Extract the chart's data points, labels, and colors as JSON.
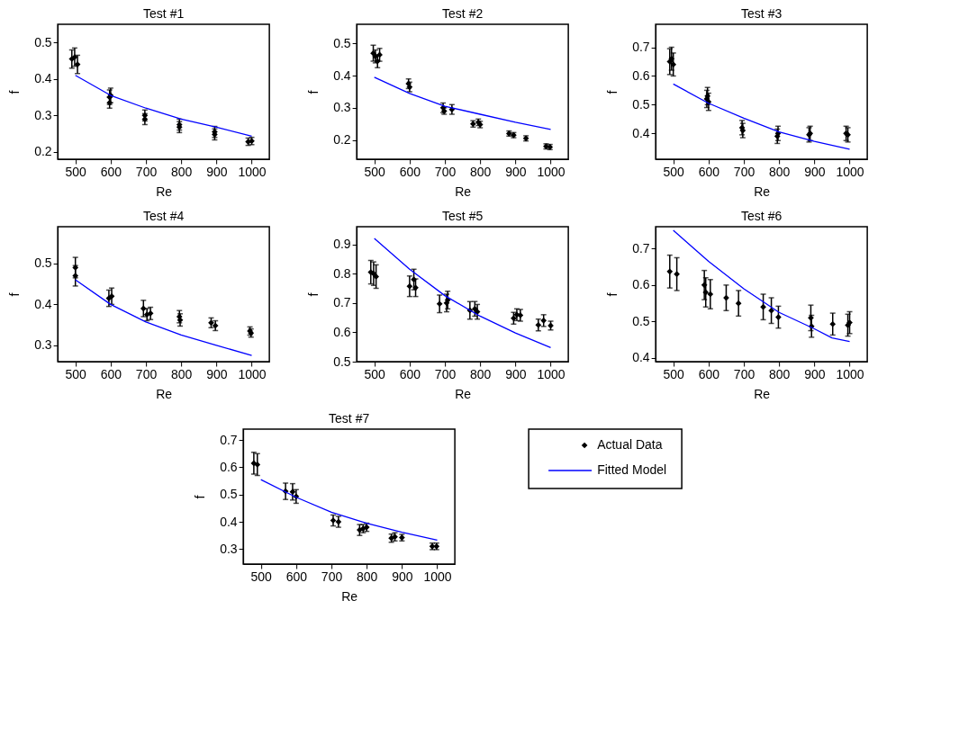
{
  "chart_data": [
    {
      "type": "scatter",
      "title": "Test #1",
      "xlabel": "Re",
      "ylabel": "f",
      "xlim": [
        450,
        1050
      ],
      "xticks": [
        500,
        600,
        700,
        800,
        900,
        1000
      ],
      "ylim": [
        0.18,
        0.55
      ],
      "yticks": [
        0.2,
        0.3,
        0.4,
        0.5
      ],
      "grid": false,
      "series": [
        {
          "type": "scatter",
          "marker": "diamond",
          "color": "#000000",
          "x": [
            490,
            498,
            506,
            597,
            600,
            597,
            697,
            697,
            795,
            795,
            895,
            895,
            1000,
            990
          ],
          "values": [
            0.455,
            0.46,
            0.44,
            0.35,
            0.355,
            0.335,
            0.3,
            0.29,
            0.275,
            0.268,
            0.255,
            0.248,
            0.23,
            0.228
          ],
          "errors": [
            0.025,
            0.025,
            0.025,
            0.02,
            0.02,
            0.015,
            0.015,
            0.015,
            0.015,
            0.015,
            0.015,
            0.015,
            0.01,
            0.01
          ]
        },
        {
          "type": "line",
          "color": "#0000ff",
          "x": [
            500,
            600,
            700,
            800,
            900,
            1000
          ],
          "values": [
            0.41,
            0.355,
            0.32,
            0.29,
            0.268,
            0.243
          ]
        }
      ]
    },
    {
      "type": "scatter",
      "title": "Test #2",
      "xlabel": "Re",
      "ylabel": "f",
      "xlim": [
        450,
        1050
      ],
      "xticks": [
        500,
        600,
        700,
        800,
        900,
        1000
      ],
      "ylim": [
        0.14,
        0.56
      ],
      "yticks": [
        0.2,
        0.3,
        0.4,
        0.5
      ],
      "grid": false,
      "series": [
        {
          "type": "scatter",
          "marker": "diamond",
          "color": "#000000",
          "x": [
            497,
            503,
            509,
            515,
            597,
            600,
            695,
            698,
            720,
            780,
            795,
            800,
            882,
            895,
            930,
            987,
            998
          ],
          "values": [
            0.47,
            0.46,
            0.445,
            0.465,
            0.375,
            0.365,
            0.3,
            0.29,
            0.295,
            0.25,
            0.255,
            0.248,
            0.22,
            0.215,
            0.205,
            0.18,
            0.178
          ],
          "errors": [
            0.025,
            0.02,
            0.02,
            0.02,
            0.015,
            0.015,
            0.015,
            0.01,
            0.015,
            0.01,
            0.01,
            0.01,
            0.008,
            0.008,
            0.008,
            0.008,
            0.008
          ]
        },
        {
          "type": "line",
          "color": "#0000ff",
          "x": [
            500,
            600,
            700,
            800,
            900,
            1000
          ],
          "values": [
            0.395,
            0.345,
            0.305,
            0.28,
            0.255,
            0.233
          ]
        }
      ]
    },
    {
      "type": "scatter",
      "title": "Test #3",
      "xlabel": "Re",
      "ylabel": "f",
      "xlim": [
        450,
        1050
      ],
      "xticks": [
        500,
        600,
        700,
        800,
        900,
        1000
      ],
      "ylim": [
        0.31,
        0.78
      ],
      "yticks": [
        0.4,
        0.5,
        0.6,
        0.7
      ],
      "grid": false,
      "series": [
        {
          "type": "scatter",
          "marker": "diamond",
          "color": "#000000",
          "x": [
            490,
            495,
            500,
            595,
            600,
            597,
            695,
            697,
            795,
            797,
            888,
            885,
            990,
            995
          ],
          "values": [
            0.65,
            0.66,
            0.64,
            0.52,
            0.51,
            0.53,
            0.42,
            0.41,
            0.39,
            0.4,
            0.4,
            0.395,
            0.4,
            0.395
          ],
          "errors": [
            0.045,
            0.04,
            0.04,
            0.03,
            0.03,
            0.03,
            0.025,
            0.025,
            0.025,
            0.025,
            0.025,
            0.025,
            0.025,
            0.025
          ]
        },
        {
          "type": "line",
          "color": "#0000ff",
          "x": [
            500,
            600,
            700,
            800,
            900,
            1000
          ],
          "values": [
            0.572,
            0.505,
            0.453,
            0.405,
            0.372,
            0.345
          ]
        }
      ]
    },
    {
      "type": "scatter",
      "title": "Test #4",
      "xlabel": "Re",
      "ylabel": "f",
      "xlim": [
        450,
        1050
      ],
      "xticks": [
        500,
        600,
        700,
        800,
        900,
        1000
      ],
      "ylim": [
        0.26,
        0.59
      ],
      "yticks": [
        0.3,
        0.4,
        0.5
      ],
      "grid": false,
      "series": [
        {
          "type": "scatter",
          "marker": "diamond",
          "color": "#000000",
          "x": [
            500,
            500,
            595,
            603,
            693,
            703,
            713,
            795,
            797,
            885,
            897,
            995,
            998
          ],
          "values": [
            0.49,
            0.47,
            0.415,
            0.42,
            0.39,
            0.375,
            0.378,
            0.37,
            0.362,
            0.355,
            0.348,
            0.335,
            0.33
          ],
          "errors": [
            0.025,
            0.025,
            0.02,
            0.02,
            0.02,
            0.015,
            0.015,
            0.015,
            0.015,
            0.012,
            0.012,
            0.01,
            0.01
          ]
        },
        {
          "type": "line",
          "color": "#0000ff",
          "x": [
            500,
            600,
            700,
            800,
            900,
            1000
          ],
          "values": [
            0.46,
            0.4,
            0.357,
            0.325,
            0.3,
            0.275
          ]
        }
      ]
    },
    {
      "type": "scatter",
      "title": "Test #5",
      "xlabel": "Re",
      "ylabel": "f",
      "xlim": [
        450,
        1050
      ],
      "xticks": [
        500,
        600,
        700,
        800,
        900,
        1000
      ],
      "ylim": [
        0.5,
        0.96
      ],
      "yticks": [
        0.5,
        0.6,
        0.7,
        0.8,
        0.9
      ],
      "grid": false,
      "series": [
        {
          "type": "scatter",
          "marker": "diamond",
          "color": "#000000",
          "x": [
            490,
            498,
            505,
            600,
            612,
            617,
            685,
            705,
            708,
            771,
            785,
            792,
            895,
            904,
            914,
            965,
            980,
            1000
          ],
          "values": [
            0.805,
            0.8,
            0.79,
            0.757,
            0.78,
            0.752,
            0.697,
            0.7,
            0.71,
            0.675,
            0.68,
            0.67,
            0.648,
            0.66,
            0.658,
            0.625,
            0.64,
            0.623
          ],
          "errors": [
            0.04,
            0.04,
            0.04,
            0.035,
            0.035,
            0.03,
            0.03,
            0.03,
            0.03,
            0.03,
            0.025,
            0.025,
            0.02,
            0.02,
            0.02,
            0.02,
            0.02,
            0.015
          ]
        },
        {
          "type": "line",
          "color": "#0000ff",
          "x": [
            500,
            600,
            700,
            800,
            900,
            1000
          ],
          "values": [
            0.92,
            0.815,
            0.725,
            0.655,
            0.598,
            0.548
          ]
        }
      ]
    },
    {
      "type": "scatter",
      "title": "Test #6",
      "xlabel": "Re",
      "ylabel": "f",
      "xlim": [
        450,
        1050
      ],
      "xticks": [
        500,
        600,
        700,
        800,
        900,
        1000
      ],
      "ylim": [
        0.39,
        0.76
      ],
      "yticks": [
        0.4,
        0.5,
        0.6,
        0.7
      ],
      "grid": false,
      "series": [
        {
          "type": "scatter",
          "marker": "diamond",
          "color": "#000000",
          "x": [
            490,
            510,
            588,
            592,
            605,
            650,
            685,
            755,
            778,
            798,
            890,
            892,
            952,
            995,
            1000
          ],
          "values": [
            0.637,
            0.63,
            0.6,
            0.58,
            0.575,
            0.565,
            0.55,
            0.54,
            0.53,
            0.512,
            0.51,
            0.487,
            0.493,
            0.49,
            0.497
          ],
          "errors": [
            0.045,
            0.045,
            0.04,
            0.04,
            0.04,
            0.035,
            0.035,
            0.035,
            0.035,
            0.03,
            0.035,
            0.03,
            0.03,
            0.03,
            0.03
          ]
        },
        {
          "type": "line",
          "color": "#0000ff",
          "x": [
            500,
            600,
            700,
            800,
            900,
            950,
            1000
          ],
          "values": [
            0.75,
            0.665,
            0.59,
            0.525,
            0.48,
            0.455,
            0.445
          ]
        }
      ]
    },
    {
      "type": "scatter",
      "title": "Test #7",
      "xlabel": "Re",
      "ylabel": "f",
      "xlim": [
        450,
        1050
      ],
      "xticks": [
        500,
        600,
        700,
        800,
        900,
        1000
      ],
      "ylim": [
        0.245,
        0.74
      ],
      "yticks": [
        0.3,
        0.4,
        0.5,
        0.6,
        0.7
      ],
      "grid": false,
      "legend": "right",
      "series": [
        {
          "name": "Actual Data",
          "type": "scatter",
          "marker": "diamond",
          "color": "#000000",
          "x": [
            480,
            490,
            570,
            590,
            600,
            705,
            720,
            780,
            790,
            800,
            870,
            880,
            900,
            986,
            998
          ],
          "values": [
            0.615,
            0.61,
            0.512,
            0.51,
            0.493,
            0.405,
            0.4,
            0.37,
            0.375,
            0.38,
            0.34,
            0.345,
            0.342,
            0.31,
            0.31
          ],
          "errors": [
            0.04,
            0.04,
            0.03,
            0.03,
            0.025,
            0.02,
            0.02,
            0.02,
            0.015,
            0.015,
            0.015,
            0.015,
            0.012,
            0.012,
            0.012
          ]
        },
        {
          "name": "Fitted Model",
          "type": "line",
          "color": "#0000ff",
          "x": [
            500,
            600,
            700,
            800,
            900,
            1000
          ],
          "values": [
            0.555,
            0.49,
            0.435,
            0.395,
            0.362,
            0.333
          ]
        }
      ]
    }
  ]
}
